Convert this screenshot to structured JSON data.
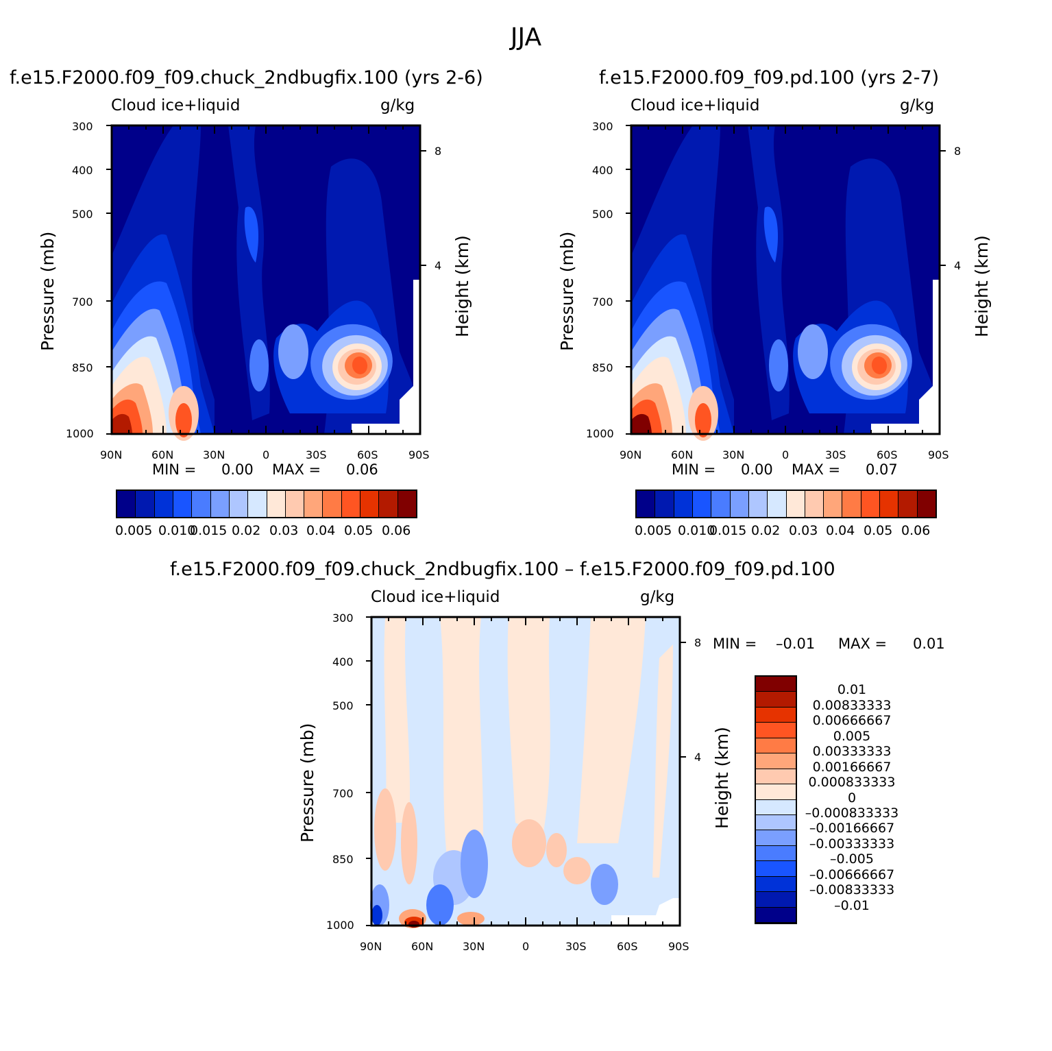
{
  "figure_title": "JJA",
  "chart_data": [
    {
      "type": "heatmap",
      "title": "f.e15.F2000.f09_f09.chuck_2ndbugfix.100 (yrs 2-6)",
      "subtitle_left": "Cloud ice+liquid",
      "subtitle_right": "g/kg",
      "ylabel": "Pressure (mb)",
      "y2label": "Height (km)",
      "xticks": [
        "90N",
        "60N",
        "30N",
        "0",
        "30S",
        "60S",
        "90S"
      ],
      "yticks": [
        "300",
        "400",
        "500",
        "700",
        "850",
        "1000"
      ],
      "y2ticks": [
        "8",
        "4"
      ],
      "stats": {
        "min_label": "MIN =",
        "min": "0.00",
        "max_label": "MAX =",
        "max": "0.06"
      },
      "levels": [
        "0.005",
        "0.010",
        "0.015",
        "0.02",
        "0.03",
        "0.04",
        "0.05",
        "0.06"
      ],
      "colors": [
        "#00008a",
        "#0019b0",
        "#0032d8",
        "#1955ff",
        "#4a7cff",
        "#7a9fff",
        "#aec6ff",
        "#d6e8ff",
        "#ffe8d8",
        "#ffcab0",
        "#ffa67a",
        "#ff7b45",
        "#ff5522",
        "#e63300",
        "#b31a00",
        "#800000"
      ]
    },
    {
      "type": "heatmap",
      "title": "f.e15.F2000.f09_f09.pd.100 (yrs 2-7)",
      "subtitle_left": "Cloud ice+liquid",
      "subtitle_right": "g/kg",
      "ylabel": "Pressure (mb)",
      "y2label": "Height (km)",
      "xticks": [
        "90N",
        "60N",
        "30N",
        "0",
        "30S",
        "60S",
        "90S"
      ],
      "yticks": [
        "300",
        "400",
        "500",
        "700",
        "850",
        "1000"
      ],
      "y2ticks": [
        "8",
        "4"
      ],
      "stats": {
        "min_label": "MIN =",
        "min": "0.00",
        "max_label": "MAX =",
        "max": "0.07"
      },
      "levels": [
        "0.005",
        "0.010",
        "0.015",
        "0.02",
        "0.03",
        "0.04",
        "0.05",
        "0.06"
      ],
      "colors": [
        "#00008a",
        "#0019b0",
        "#0032d8",
        "#1955ff",
        "#4a7cff",
        "#7a9fff",
        "#aec6ff",
        "#d6e8ff",
        "#ffe8d8",
        "#ffcab0",
        "#ffa67a",
        "#ff7b45",
        "#ff5522",
        "#e63300",
        "#b31a00",
        "#800000"
      ]
    },
    {
      "type": "heatmap",
      "title": "f.e15.F2000.f09_f09.chuck_2ndbugfix.100 – f.e15.F2000.f09_f09.pd.100",
      "subtitle_left": "Cloud ice+liquid",
      "subtitle_right": "g/kg",
      "ylabel": "Pressure (mb)",
      "y2label": "Height (km)",
      "xticks": [
        "90N",
        "60N",
        "30N",
        "0",
        "30S",
        "60S",
        "90S"
      ],
      "yticks": [
        "300",
        "400",
        "500",
        "700",
        "850",
        "1000"
      ],
      "y2ticks": [
        "8",
        "4"
      ],
      "stats": {
        "min_label": "MIN =",
        "min": "–0.01",
        "max_label": "MAX =",
        "max": "0.01"
      },
      "levels": [
        "0.01",
        "0.00833333",
        "0.00666667",
        "0.005",
        "0.00333333",
        "0.00166667",
        "0.000833333",
        "0",
        "–0.000833333",
        "–0.00166667",
        "–0.00333333",
        "–0.005",
        "–0.00666667",
        "–0.00833333",
        "–0.01"
      ],
      "colors": [
        "#800000",
        "#b31a00",
        "#e63300",
        "#ff5522",
        "#ff7b45",
        "#ffa67a",
        "#ffcab0",
        "#ffe8d8",
        "#d6e8ff",
        "#aec6ff",
        "#7a9fff",
        "#4a7cff",
        "#1955ff",
        "#0032d8",
        "#0019b0",
        "#00008a"
      ]
    }
  ]
}
